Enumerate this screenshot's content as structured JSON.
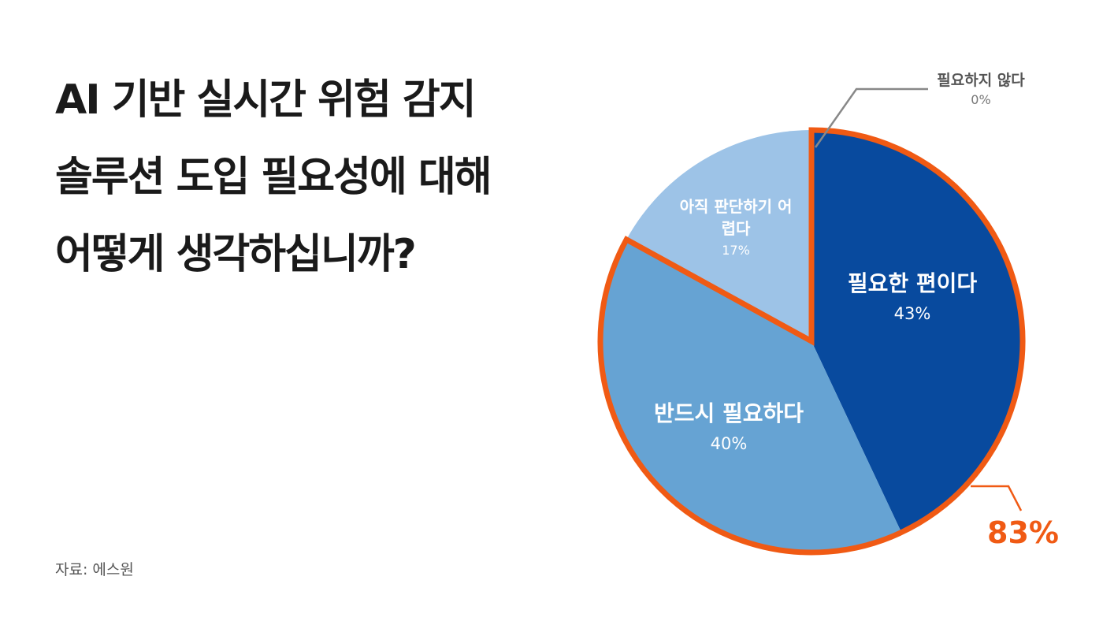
{
  "title_lines": [
    "AI 기반 실시간 위험 감지",
    "솔루션 도입 필요성에 대해",
    "어떻게 생각하십니까?"
  ],
  "source": "자료: 에스원",
  "chart_data": {
    "type": "pie",
    "start": "12 o'clock, clockwise",
    "slices": [
      {
        "label": "필요한 편이다",
        "value": 43,
        "value_label": "43%",
        "color": "#084a9e"
      },
      {
        "label": "반드시 필요하다",
        "value": 40,
        "value_label": "40%",
        "color": "#66a3d3"
      },
      {
        "label": "아직 판단하기 어렵다",
        "value": 17,
        "value_label": "17%",
        "color": "#9dc3e7"
      },
      {
        "label": "필요하지 않다",
        "value": 0,
        "value_label": "0%",
        "color": "#888888"
      }
    ],
    "highlight": {
      "slices": [
        "필요한 편이다",
        "반드시 필요하다"
      ],
      "value_label": "83%",
      "color": "#f05a14"
    }
  }
}
